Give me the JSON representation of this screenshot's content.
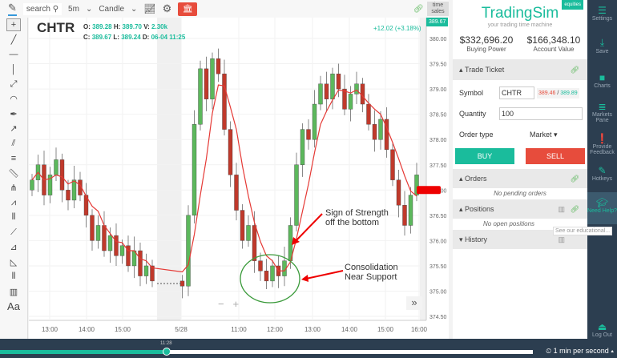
{
  "toolbar": {
    "search": "search",
    "interval": "5m",
    "chart_type": "Candle",
    "time_sales": "time sales"
  },
  "symbol": {
    "ticker": "CHTR",
    "o_label": "O:",
    "o": "389.28",
    "h_label": "H:",
    "h": "389.70",
    "v_label": "V:",
    "v": "2.30k",
    "c_label": "C:",
    "c": "389.67",
    "l_label": "L:",
    "l": "389.24",
    "d_label": "D:",
    "d": "06-04 11:25",
    "change": "+12.02 (+3.18%)",
    "last_price_tag": "389.67"
  },
  "annotations": {
    "strength": [
      "Sign of Strength",
      "off the bottom"
    ],
    "consolidation": [
      "Consolidation",
      "Near Support"
    ]
  },
  "chart_data": {
    "type": "candlestick",
    "y_ticks": [
      "380.00",
      "379.50",
      "379.00",
      "378.50",
      "378.00",
      "377.50",
      "377.00",
      "376.50",
      "376.00",
      "375.50",
      "375.00",
      "374.50"
    ],
    "ylim": [
      374.5,
      380.0
    ],
    "x_ticks": [
      "13:00",
      "14:00",
      "15:00",
      "5/28",
      "11:00",
      "12:00",
      "13:00",
      "14:00",
      "15:00",
      "16:00"
    ],
    "closes": [
      377.2,
      377.5,
      376.9,
      377.3,
      377.6,
      377.0,
      376.8,
      377.2,
      376.9,
      376.5,
      376.0,
      376.3,
      375.8,
      376.1,
      375.7,
      375.9,
      375.5,
      375.8,
      375.3,
      375.5,
      375.2,
      null,
      null,
      null,
      null,
      375.1,
      376.5,
      378.3,
      379.4,
      378.8,
      379.6,
      379.3,
      378.2,
      377.3,
      376.6,
      376.0,
      376.3,
      375.6,
      375.4,
      375.2,
      375.5,
      375.3,
      375.6,
      376.3,
      377.5,
      378.2,
      378.0,
      378.7,
      379.1,
      378.8,
      379.3,
      379.0,
      378.6,
      378.9,
      379.1,
      378.7,
      378.3,
      378.0,
      378.4,
      377.8,
      377.2,
      376.7,
      376.3,
      376.9,
      377.3
    ],
    "colors": {
      "up": "#5cb85c",
      "down": "#c0392b",
      "ma": "#e53935"
    }
  },
  "panel": {
    "brand": "TradingSim",
    "tagline": "your trading time machine",
    "badge": "equities",
    "buying_power": "$332,696.20",
    "buying_power_label": "Buying Power",
    "account_value": "$166,348.10",
    "account_value_label": "Account Value",
    "trade_ticket": "Trade Ticket",
    "symbol_label": "Symbol",
    "symbol_value": "CHTR",
    "bid": "389.46",
    "ask": "389.89",
    "quantity_label": "Quantity",
    "quantity": "100",
    "order_type_label": "Order type",
    "order_type": "Market",
    "buy": "BUY",
    "sell": "SELL",
    "orders": "Orders",
    "no_orders": "No pending orders",
    "positions": "Positions",
    "no_positions": "No open positions",
    "history": "History",
    "tooltip": "See our educational..."
  },
  "sidebar": [
    "Settings",
    "Save",
    "Charts",
    "Markets Pane",
    "Provide Feedback",
    "Hotkeys",
    "Need Help?",
    "Log Out"
  ],
  "playback": {
    "time": "11:28",
    "progress": 0.27,
    "speed": "1 min per second"
  }
}
